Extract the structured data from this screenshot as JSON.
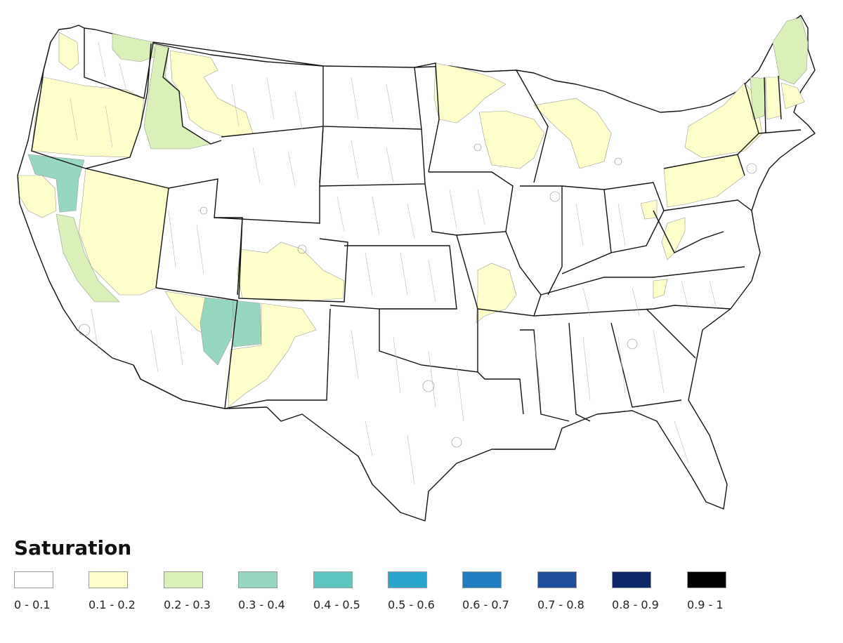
{
  "legend": {
    "title": "Saturation",
    "bins": [
      {
        "label": "0 - 0.1",
        "color": "#ffffff"
      },
      {
        "label": "0.1 - 0.2",
        "color": "#ffffcc"
      },
      {
        "label": "0.2 - 0.3",
        "color": "#d9f0b8"
      },
      {
        "label": "0.3 - 0.4",
        "color": "#96d8bf"
      },
      {
        "label": "0.4 - 0.5",
        "color": "#5ec6c1"
      },
      {
        "label": "0.5 - 0.6",
        "color": "#2aa5cc"
      },
      {
        "label": "0.6 - 0.7",
        "color": "#1f7dc0"
      },
      {
        "label": "0.7 - 0.8",
        "color": "#1e4f9e"
      },
      {
        "label": "0.8 - 0.9",
        "color": "#0d2768"
      },
      {
        "label": "0.9 - 1",
        "color": "#000000"
      }
    ]
  },
  "map": {
    "description_color_key": "legend.bins"
  }
}
